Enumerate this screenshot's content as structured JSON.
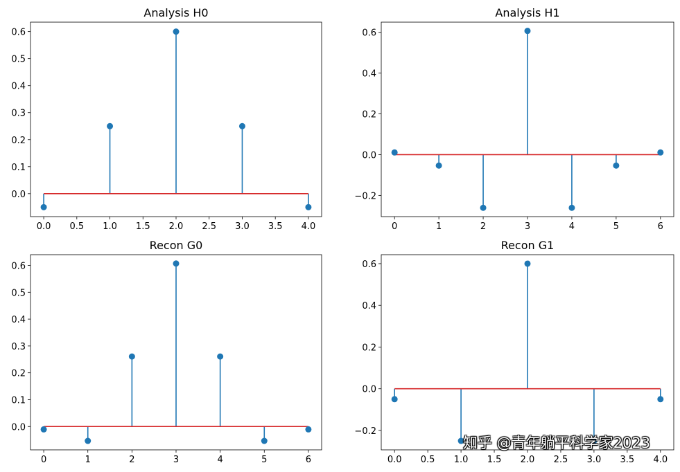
{
  "watermark": "知乎 @青年躺平科学家2023",
  "chart_data": [
    {
      "type": "stem",
      "title": "Analysis H0",
      "x": [
        0,
        1,
        2,
        3,
        4
      ],
      "values": [
        -0.05,
        0.25,
        0.6,
        0.25,
        -0.05
      ],
      "xlim": [
        -0.2,
        4.2
      ],
      "ylim": [
        -0.085,
        0.635
      ],
      "xticks": [
        0,
        0.5,
        1,
        1.5,
        2,
        2.5,
        3,
        3.5,
        4
      ],
      "xtick_labels": [
        "0.0",
        "0.5",
        "1.0",
        "1.5",
        "2.0",
        "2.5",
        "3.0",
        "3.5",
        "4.0"
      ],
      "yticks": [
        0,
        0.1,
        0.2,
        0.3,
        0.4,
        0.5,
        0.6
      ],
      "ytick_labels": [
        "0.0",
        "0.1",
        "0.2",
        "0.3",
        "0.4",
        "0.5",
        "0.6"
      ],
      "baseline": 0,
      "colors": {
        "stem": "#1f77b4",
        "baseline": "#d62728"
      }
    },
    {
      "type": "stem",
      "title": "Analysis H1",
      "x": [
        0,
        1,
        2,
        3,
        4,
        5,
        6
      ],
      "values": [
        0.0107,
        -0.0536,
        -0.2607,
        0.6071,
        -0.2607,
        -0.0536,
        0.0107
      ],
      "xlim": [
        -0.3,
        6.3
      ],
      "ylim": [
        -0.304,
        0.65
      ],
      "xticks": [
        0,
        1,
        2,
        3,
        4,
        5,
        6
      ],
      "xtick_labels": [
        "0",
        "1",
        "2",
        "3",
        "4",
        "5",
        "6"
      ],
      "yticks": [
        -0.2,
        0,
        0.2,
        0.4,
        0.6
      ],
      "ytick_labels": [
        "−0.2",
        "0.0",
        "0.2",
        "0.4",
        "0.6"
      ],
      "baseline": 0,
      "colors": {
        "stem": "#1f77b4",
        "baseline": "#d62728"
      }
    },
    {
      "type": "stem",
      "title": "Recon G0",
      "x": [
        0,
        1,
        2,
        3,
        4,
        5,
        6
      ],
      "values": [
        -0.0107,
        -0.0536,
        0.2607,
        0.6071,
        0.2607,
        -0.0536,
        -0.0107
      ],
      "xlim": [
        -0.3,
        6.3
      ],
      "ylim": [
        -0.087,
        0.64
      ],
      "xticks": [
        0,
        1,
        2,
        3,
        4,
        5,
        6
      ],
      "xtick_labels": [
        "0",
        "1",
        "2",
        "3",
        "4",
        "5",
        "6"
      ],
      "yticks": [
        0,
        0.1,
        0.2,
        0.3,
        0.4,
        0.5,
        0.6
      ],
      "ytick_labels": [
        "0.0",
        "0.1",
        "0.2",
        "0.3",
        "0.4",
        "0.5",
        "0.6"
      ],
      "baseline": 0,
      "colors": {
        "stem": "#1f77b4",
        "baseline": "#d62728"
      }
    },
    {
      "type": "stem",
      "title": "Recon G1",
      "x": [
        0,
        1,
        2,
        3,
        4
      ],
      "values": [
        -0.05,
        -0.25,
        0.6,
        -0.25,
        -0.05
      ],
      "xlim": [
        -0.2,
        4.2
      ],
      "ylim": [
        -0.293,
        0.643
      ],
      "xticks": [
        0,
        0.5,
        1,
        1.5,
        2,
        2.5,
        3,
        3.5,
        4
      ],
      "xtick_labels": [
        "0.0",
        "0.5",
        "1.0",
        "1.5",
        "2.0",
        "2.5",
        "3.0",
        "3.5",
        "4.0"
      ],
      "yticks": [
        -0.2,
        0,
        0.2,
        0.4,
        0.6
      ],
      "ytick_labels": [
        "−0.2",
        "0.0",
        "0.2",
        "0.4",
        "0.6"
      ],
      "baseline": 0,
      "colors": {
        "stem": "#1f77b4",
        "baseline": "#d62728"
      }
    }
  ]
}
